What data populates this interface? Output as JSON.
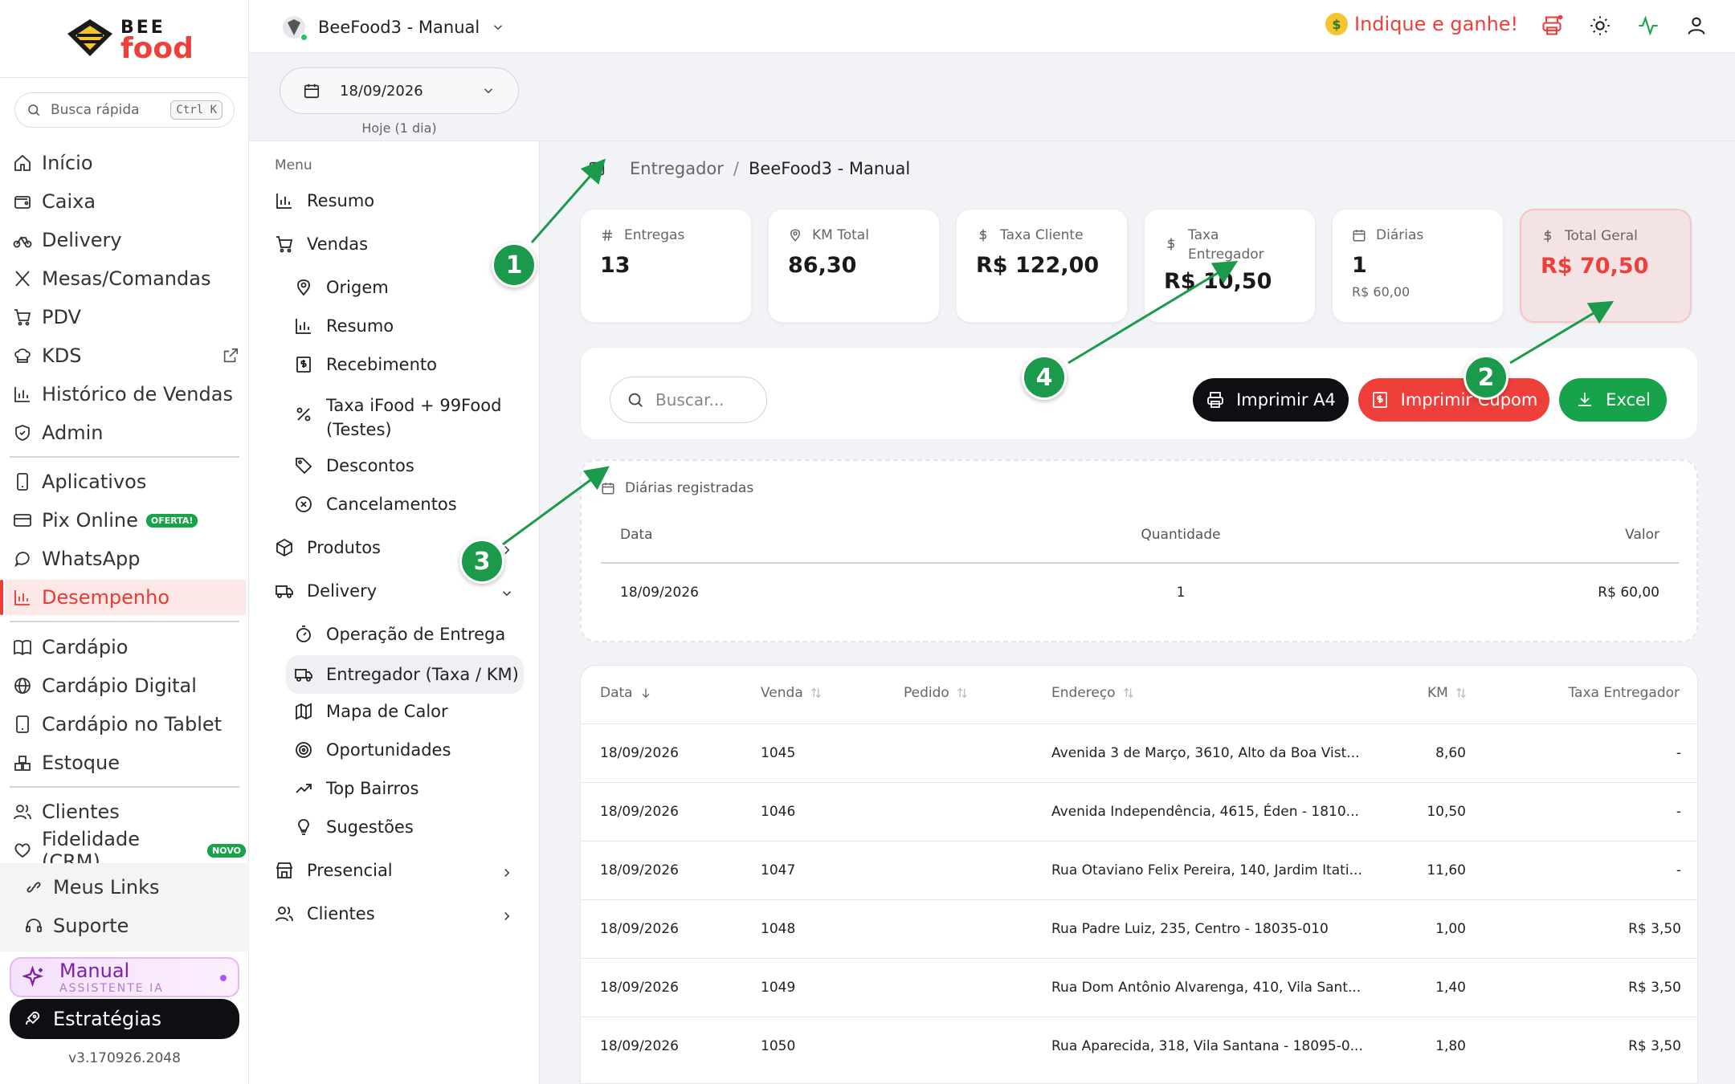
{
  "brand": {
    "top": "BEE",
    "bottom": "food"
  },
  "quick_search": {
    "placeholder": "Busca rápida",
    "shortcut": "Ctrl K"
  },
  "sidebar": {
    "items": [
      {
        "label": "Início",
        "icon": "home-icon"
      },
      {
        "label": "Caixa",
        "icon": "wallet-icon"
      },
      {
        "label": "Delivery",
        "icon": "bike-icon"
      },
      {
        "label": "Mesas/Comandas",
        "icon": "utensils-icon"
      },
      {
        "label": "PDV",
        "icon": "cart-icon"
      },
      {
        "label": "KDS",
        "icon": "chef-hat-icon"
      },
      {
        "label": "Histórico de Vendas",
        "icon": "bar-chart-icon"
      },
      {
        "label": "Admin",
        "icon": "shield-icon"
      },
      {
        "label": "Aplicativos",
        "icon": "smartphone-icon"
      },
      {
        "label": "Pix Online",
        "icon": "credit-card-icon",
        "badge": "OFERTA!"
      },
      {
        "label": "WhatsApp",
        "icon": "message-icon"
      },
      {
        "label": "Desempenho",
        "icon": "bar-chart-icon",
        "active": true
      },
      {
        "label": "Cardápio",
        "icon": "book-icon"
      },
      {
        "label": "Cardápio Digital",
        "icon": "globe-icon"
      },
      {
        "label": "Cardápio no Tablet",
        "icon": "tablet-icon"
      },
      {
        "label": "Estoque",
        "icon": "boxes-icon"
      },
      {
        "label": "Clientes",
        "icon": "users-icon"
      },
      {
        "label": "Fidelidade (CRM)",
        "icon": "heart-icon",
        "badge": "NOVO"
      },
      {
        "label": "Meus Links",
        "icon": "link-icon"
      },
      {
        "label": "Suporte",
        "icon": "headset-icon"
      }
    ],
    "manual": {
      "title": "Manual",
      "subtitle": "ASSISTENTE IA"
    },
    "estrategias": "Estratégias",
    "version": "v3.170926.2048"
  },
  "topbar": {
    "store": "BeeFood3 - Manual",
    "refer": "Indique e ganhe!",
    "icons": [
      "printer-icon",
      "sun-icon",
      "activity-icon",
      "user-icon"
    ]
  },
  "filter": {
    "date": "18/09/2026",
    "date_sub": "Hoje (1 dia)"
  },
  "subnav": {
    "menu_label": "Menu",
    "resumo": "Resumo",
    "vendas": "Vendas",
    "vendas_items": [
      "Origem",
      "Resumo",
      "Recebimento",
      "Taxa iFood + 99Food",
      "(Testes)",
      "Descontos",
      "Cancelamentos"
    ],
    "produtos": "Produtos",
    "delivery": "Delivery",
    "delivery_items": [
      "Operação de Entrega",
      "Entregador (Taxa / KM)",
      "Mapa de Calor",
      "Oportunidades",
      "Top Bairros",
      "Sugestões"
    ],
    "presencial": "Presencial",
    "clientes": "Clientes"
  },
  "breadcrumb": {
    "parent": "Entregador",
    "current": "BeeFood3 - Manual"
  },
  "stats": [
    {
      "label": "Entregas",
      "value": "13",
      "icon": "hash-icon"
    },
    {
      "label": "KM Total",
      "value": "86,30",
      "icon": "map-pin-icon"
    },
    {
      "label": "Taxa Cliente",
      "value": "R$ 122,00",
      "icon": "dollar-icon"
    },
    {
      "label": "Taxa Entregador",
      "value": "R$ 10,50",
      "icon": "dollar-icon"
    },
    {
      "label": "Diárias",
      "value": "1",
      "sub": "R$ 60,00",
      "icon": "calendar-icon"
    },
    {
      "label": "Total Geral",
      "value": "R$ 70,50",
      "icon": "dollar-icon"
    }
  ],
  "toolbar": {
    "search_placeholder": "Buscar...",
    "print_a4": "Imprimir A4",
    "print_coupon": "Imprimir Cupom",
    "excel": "Excel",
    "colors": {
      "dark": "#0e0f12",
      "red": "#ef3f3a",
      "green": "#16a34a"
    }
  },
  "diarias": {
    "title": "Diárias registradas",
    "headers": [
      "Data",
      "Quantidade",
      "Valor"
    ],
    "rows": [
      {
        "data": "18/09/2026",
        "quantidade": "1",
        "valor": "R$ 60,00"
      }
    ]
  },
  "table": {
    "headers": [
      "Data",
      "Venda",
      "Pedido",
      "Endereço",
      "KM",
      "Taxa Entregador"
    ],
    "rows": [
      {
        "data": "18/09/2026",
        "venda": "1045",
        "pedido": "",
        "endereco": "Avenida 3 de Março, 3610, Alto da Boa Vist...",
        "km": "8,60",
        "taxa": "-"
      },
      {
        "data": "18/09/2026",
        "venda": "1046",
        "pedido": "",
        "endereco": "Avenida Independência, 4615, Éden - 1810...",
        "km": "10,50",
        "taxa": "-"
      },
      {
        "data": "18/09/2026",
        "venda": "1047",
        "pedido": "",
        "endereco": "Rua Otaviano Felix Pereira, 140, Jardim Itati...",
        "km": "11,60",
        "taxa": "-"
      },
      {
        "data": "18/09/2026",
        "venda": "1048",
        "pedido": "",
        "endereco": "Rua Padre Luiz, 235, Centro - 18035-010",
        "km": "1,00",
        "taxa": "R$ 3,50"
      },
      {
        "data": "18/09/2026",
        "venda": "1049",
        "pedido": "",
        "endereco": "Rua Dom Antônio Alvarenga, 410, Vila Sant...",
        "km": "1,40",
        "taxa": "R$ 3,50"
      },
      {
        "data": "18/09/2026",
        "venda": "1050",
        "pedido": "",
        "endereco": "Rua Aparecida, 318, Vila Santana - 18095-0...",
        "km": "1,80",
        "taxa": "R$ 3,50"
      }
    ]
  },
  "annotations": [
    "1",
    "2",
    "3",
    "4"
  ],
  "colors": {
    "accent": "#ef3f3a",
    "annotation": "#1a9a4a"
  }
}
